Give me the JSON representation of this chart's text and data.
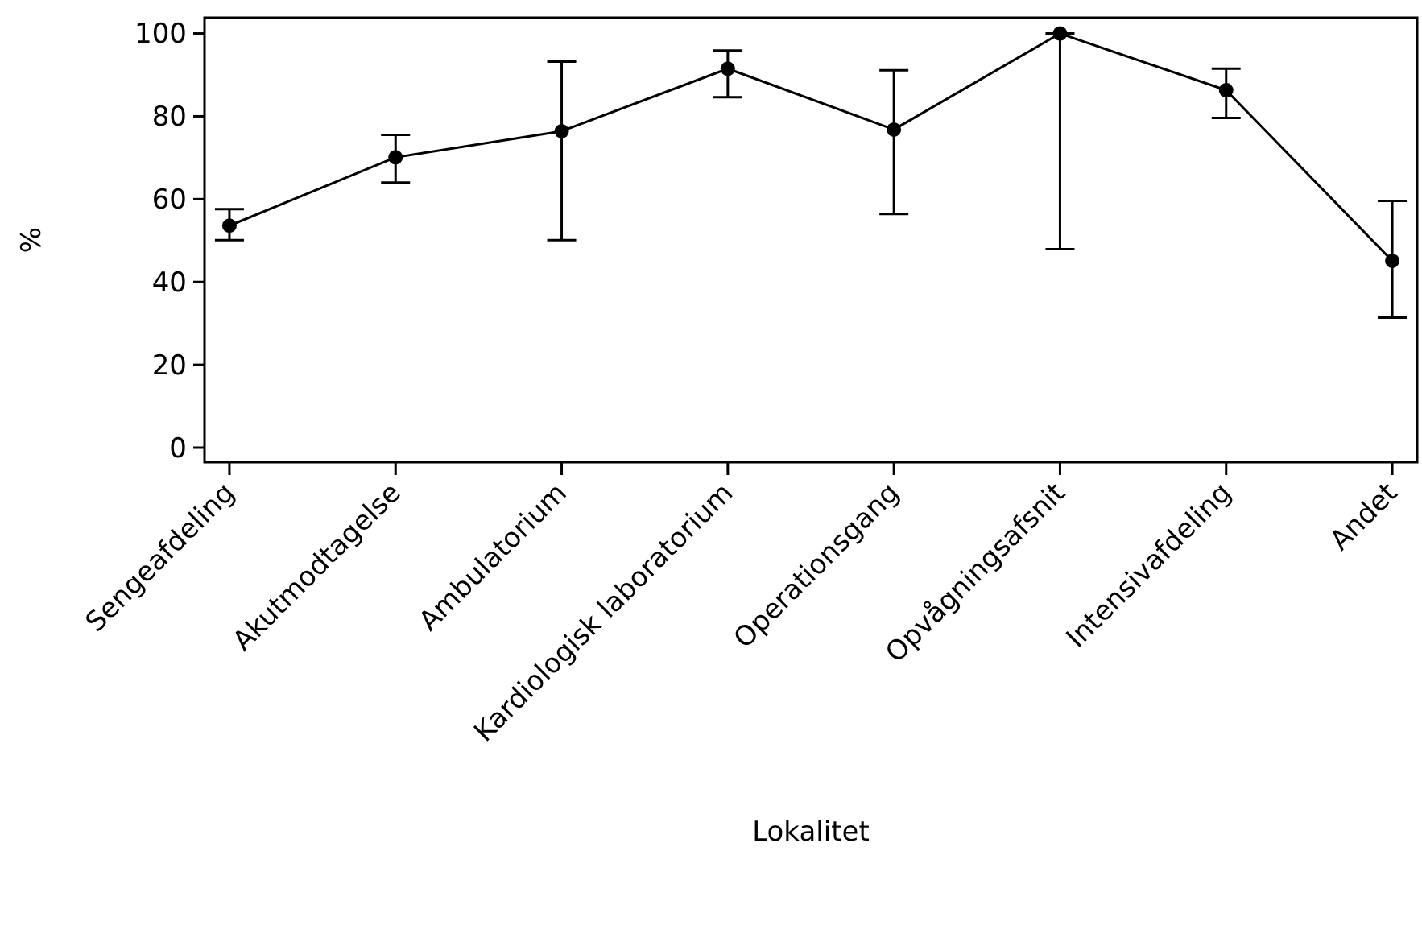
{
  "chart_data": {
    "type": "line",
    "xlabel": "Lokalitet",
    "ylabel": "%",
    "categories": [
      "Sengeafdeling",
      "Akutmodtagelse",
      "Ambulatorium",
      "Kardiologisk laboratorium",
      "Operationsgang",
      "Opvågningsafsnit",
      "Intensivafdeling",
      "Andet"
    ],
    "series": [
      {
        "color": "#000000",
        "values": [
          53.6,
          70.1,
          76.4,
          91.5,
          76.8,
          100,
          86.3,
          45.1
        ],
        "errors": [
          [
            50.1,
            57.6
          ],
          [
            64.0,
            75.5
          ],
          [
            50.1,
            93.2
          ],
          [
            84.6,
            95.9
          ],
          [
            56.4,
            91.1
          ],
          [
            47.9,
            100
          ],
          [
            79.6,
            91.5
          ],
          [
            31.4,
            59.6
          ]
        ]
      }
    ],
    "ylim": [
      -3.5,
      103.8
    ],
    "yticks": [
      0,
      20,
      40,
      60,
      80,
      100
    ],
    "grid": false,
    "marker": "circle",
    "line_style": "solid"
  }
}
